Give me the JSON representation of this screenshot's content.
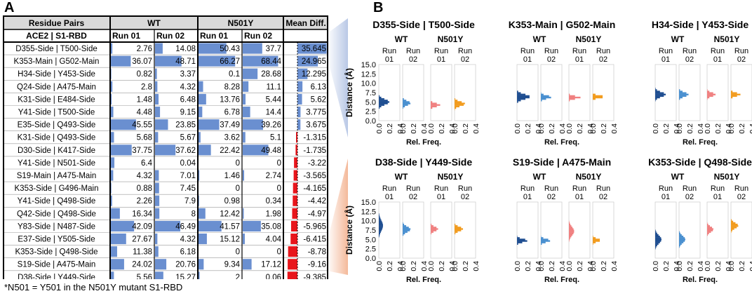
{
  "panel_a_label": "A",
  "panel_b_label": "B",
  "table": {
    "header_row1": [
      "Residue Pairs",
      "WT",
      "N501Y",
      "Mean Diff."
    ],
    "header_row2": [
      "ACE2 | S1-RBD",
      "Run 01",
      "Run 02",
      "Run 01",
      "Run 02"
    ],
    "rows": [
      {
        "pair": "D355-Side | T500-Side",
        "wt1": "2.76",
        "wt2": "14.08",
        "mu1": "50.43",
        "mu2": "37.7",
        "diff": "35.645"
      },
      {
        "pair": "K353-Main | G502-Main",
        "wt1": "36.07",
        "wt2": "48.71",
        "mu1": "66.27",
        "mu2": "68.44",
        "diff": "24.965"
      },
      {
        "pair": "H34-Side | Y453-Side",
        "wt1": "0.82",
        "wt2": "3.37",
        "mu1": "0.1",
        "mu2": "28.68",
        "diff": "12.295"
      },
      {
        "pair": "Q24-Side | A475-Main",
        "wt1": "2.8",
        "wt2": "4.32",
        "mu1": "8.28",
        "mu2": "11.1",
        "diff": "6.13"
      },
      {
        "pair": "K31-Side | E484-Side",
        "wt1": "1.48",
        "wt2": "6.48",
        "mu1": "13.76",
        "mu2": "5.44",
        "diff": "5.62"
      },
      {
        "pair": "Y41-Side | T500-Side",
        "wt1": "4.48",
        "wt2": "9.15",
        "mu1": "6.78",
        "mu2": "14.4",
        "diff": "3.775"
      },
      {
        "pair": "E35-Side | Q493-Side",
        "wt1": "45.55",
        "wt2": "23.85",
        "mu1": "37.49",
        "mu2": "39.26",
        "diff": "3.675"
      },
      {
        "pair": "K31-Side | Q493-Side",
        "wt1": "5.68",
        "wt2": "5.67",
        "mu1": "3.62",
        "mu2": "5.1",
        "diff": "-1.315"
      },
      {
        "pair": "D30-Side | K417-Side",
        "wt1": "37.75",
        "wt2": "37.62",
        "mu1": "22.42",
        "mu2": "49.48",
        "diff": "-1.735"
      },
      {
        "pair": "Y41-Side | N501-Side",
        "wt1": "6.4",
        "wt2": "0.04",
        "mu1": "0",
        "mu2": "0",
        "diff": "-3.22"
      },
      {
        "pair": "S19-Main | A475-Main",
        "wt1": "4.32",
        "wt2": "7.01",
        "mu1": "1.46",
        "mu2": "2.74",
        "diff": "-3.565"
      },
      {
        "pair": "K353-Side | G496-Main",
        "wt1": "0.88",
        "wt2": "7.45",
        "mu1": "0",
        "mu2": "0",
        "diff": "-4.165"
      },
      {
        "pair": "Y41-Side | Q498-Side",
        "wt1": "2.26",
        "wt2": "7.9",
        "mu1": "0.98",
        "mu2": "0.34",
        "diff": "-4.42"
      },
      {
        "pair": "Q42-Side | Q498-Side",
        "wt1": "16.34",
        "wt2": "8",
        "mu1": "12.42",
        "mu2": "1.98",
        "diff": "-4.97"
      },
      {
        "pair": "Y83-Side | N487-Side",
        "wt1": "42.09",
        "wt2": "46.49",
        "mu1": "41.57",
        "mu2": "35.08",
        "diff": "-5.965"
      },
      {
        "pair": "E37-Side | Y505-Side",
        "wt1": "27.67",
        "wt2": "4.32",
        "mu1": "15.12",
        "mu2": "4.04",
        "diff": "-6.415"
      },
      {
        "pair": "K353-Side | Q498-Side",
        "wt1": "11.38",
        "wt2": "6.18",
        "mu1": "0",
        "mu2": "0",
        "diff": "-8.78"
      },
      {
        "pair": "S19-Side | A475-Main",
        "wt1": "24.02",
        "wt2": "20.76",
        "mu1": "9.34",
        "mu2": "17.12",
        "diff": "-9.16"
      },
      {
        "pair": "D38-Side | Y449-Side",
        "wt1": "5.56",
        "wt2": "15.27",
        "mu1": "2",
        "mu2": "0.06",
        "diff": "-9.385"
      }
    ]
  },
  "footnote": "*N501 = Y501 in the N501Y mutant S1-RBD",
  "colors": {
    "bar_blue": "#6a8fd0",
    "bar_red": "#e8161c",
    "wt_run1": "#1f4e91",
    "wt_run2": "#4a90d0",
    "mu_run1": "#f08080",
    "mu_run2": "#f29c1f",
    "connector_top": "#b9c8e6",
    "connector_bottom": "#f4b99a"
  },
  "chart_data": [
    {
      "type": "histogram",
      "title": "D355-Side | T500-Side",
      "groups": [
        "WT",
        "N501Y"
      ],
      "runs": [
        "Run 01",
        "Run 02"
      ],
      "ylabel": "Distance (Å)",
      "xlabel": "Rel. Freq.",
      "ylim": [
        0,
        15
      ],
      "yticks": [
        "0.0",
        "2.5",
        "5.0",
        "7.5",
        "10.0",
        "12.5",
        "15.0"
      ],
      "xticks": [
        "0.0",
        "0.2",
        "0.4"
      ],
      "series": [
        {
          "name": "WT Run 01",
          "peak": 4.8,
          "spread": 1.0,
          "max": 0.2
        },
        {
          "name": "WT Run 02",
          "peak": 4.5,
          "spread": 0.8,
          "max": 0.15
        },
        {
          "name": "N501Y Run 01",
          "peak": 4.0,
          "spread": 0.6,
          "max": 0.18
        },
        {
          "name": "N501Y Run 02",
          "peak": 4.3,
          "spread": 0.8,
          "max": 0.2
        }
      ]
    },
    {
      "type": "histogram",
      "title": "K353-Main | G502-Main",
      "groups": [
        "WT",
        "N501Y"
      ],
      "runs": [
        "Run 01",
        "Run 02"
      ],
      "ylabel": "Distance (Å)",
      "xlabel": "Rel. Freq.",
      "ylim": [
        0,
        15
      ],
      "yticks": [
        "0.0",
        "2.5",
        "5.0",
        "7.5",
        "10.0",
        "12.5",
        "15.0"
      ],
      "xticks": [
        "0.0",
        "0.2",
        "0.4"
      ],
      "series": [
        {
          "name": "WT Run 01",
          "peak": 6.2,
          "spread": 0.9,
          "max": 0.25
        },
        {
          "name": "WT Run 02",
          "peak": 6.1,
          "spread": 0.6,
          "max": 0.2
        },
        {
          "name": "N501Y Run 01",
          "peak": 6.0,
          "spread": 0.5,
          "max": 0.22
        },
        {
          "name": "N501Y Run 02",
          "peak": 6.2,
          "spread": 0.5,
          "max": 0.22
        }
      ]
    },
    {
      "type": "histogram",
      "title": "H34-Side | Y453-Side",
      "groups": [
        "WT",
        "N501Y"
      ],
      "runs": [
        "Run 01",
        "Run 02"
      ],
      "ylabel": "Distance (Å)",
      "xlabel": "Rel. Freq.",
      "ylim": [
        0,
        15
      ],
      "yticks": [
        "0.0",
        "2.5",
        "5.0",
        "7.5",
        "10.0",
        "12.5",
        "15.0"
      ],
      "xticks": [
        "0.0",
        "0.2",
        "0.4"
      ],
      "series": [
        {
          "name": "WT Run 01",
          "peak": 6.8,
          "spread": 0.9,
          "max": 0.2
        },
        {
          "name": "WT Run 02",
          "peak": 6.8,
          "spread": 0.8,
          "max": 0.18
        },
        {
          "name": "N501Y Run 01",
          "peak": 6.8,
          "spread": 0.7,
          "max": 0.16
        },
        {
          "name": "N501Y Run 02",
          "peak": 6.8,
          "spread": 0.6,
          "max": 0.18
        }
      ]
    },
    {
      "type": "histogram",
      "title": "D38-Side | Y449-Side",
      "groups": [
        "WT",
        "N501Y"
      ],
      "runs": [
        "Run 01",
        "Run 02"
      ],
      "ylabel": "Distance (Å)",
      "xlabel": "Rel. Freq.",
      "ylim": [
        0,
        15
      ],
      "yticks": [
        "0.0",
        "2.5",
        "5.0",
        "7.5",
        "10.0",
        "12.5",
        "15.0"
      ],
      "xticks": [
        "0.0",
        "0.2",
        "0.4"
      ],
      "series": [
        {
          "name": "WT Run 01",
          "peak": 8.5,
          "spread": 2.0,
          "max": 0.08
        },
        {
          "name": "WT Run 02",
          "peak": 7.5,
          "spread": 1.0,
          "max": 0.15
        },
        {
          "name": "N501Y Run 01",
          "peak": 7.6,
          "spread": 0.8,
          "max": 0.14
        },
        {
          "name": "N501Y Run 02",
          "peak": 7.6,
          "spread": 0.8,
          "max": 0.16
        }
      ]
    },
    {
      "type": "histogram",
      "title": "S19-Side | A475-Main",
      "groups": [
        "WT",
        "N501Y"
      ],
      "runs": [
        "Run 01",
        "Run 02"
      ],
      "ylabel": "Distance (Å)",
      "xlabel": "Rel. Freq.",
      "ylim": [
        0,
        15
      ],
      "yticks": [
        "0.0",
        "2.5",
        "5.0",
        "7.5",
        "10.0",
        "12.5",
        "15.0"
      ],
      "xticks": [
        "0.0",
        "0.2",
        "0.4"
      ],
      "series": [
        {
          "name": "WT Run 01",
          "peak": 4.5,
          "spread": 0.6,
          "max": 0.2
        },
        {
          "name": "WT Run 02",
          "peak": 4.5,
          "spread": 0.6,
          "max": 0.18
        },
        {
          "name": "N501Y Run 01",
          "peak": 7.0,
          "spread": 1.6,
          "max": 0.1
        },
        {
          "name": "N501Y Run 02",
          "peak": 4.6,
          "spread": 0.6,
          "max": 0.15
        }
      ]
    },
    {
      "type": "histogram",
      "title": "K353-Side | Q498-Side",
      "groups": [
        "WT",
        "N501Y"
      ],
      "runs": [
        "Run 01",
        "Run 02"
      ],
      "ylabel": "Distance (Å)",
      "xlabel": "Rel. Freq.",
      "ylim": [
        0,
        15
      ],
      "yticks": [
        "0.0",
        "2.5",
        "5.0",
        "7.5",
        "10.0",
        "12.5",
        "15.0"
      ],
      "xticks": [
        "0.0",
        "0.2",
        "0.4"
      ],
      "series": [
        {
          "name": "WT Run 01",
          "peak": 4.8,
          "spread": 1.5,
          "max": 0.12
        },
        {
          "name": "WT Run 02",
          "peak": 4.8,
          "spread": 1.3,
          "max": 0.12
        },
        {
          "name": "N501Y Run 01",
          "peak": 7.5,
          "spread": 1.0,
          "max": 0.12
        },
        {
          "name": "N501Y Run 02",
          "peak": 8.5,
          "spread": 1.0,
          "max": 0.14
        }
      ]
    }
  ]
}
